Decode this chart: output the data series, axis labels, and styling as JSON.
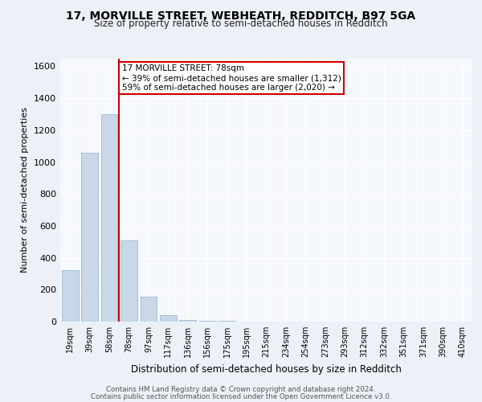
{
  "title1": "17, MORVILLE STREET, WEBHEATH, REDDITCH, B97 5GA",
  "title2": "Size of property relative to semi-detached houses in Redditch",
  "xlabel": "Distribution of semi-detached houses by size in Redditch",
  "ylabel": "Number of semi-detached properties",
  "bin_labels": [
    "19sqm",
    "39sqm",
    "58sqm",
    "78sqm",
    "97sqm",
    "117sqm",
    "136sqm",
    "156sqm",
    "175sqm",
    "195sqm",
    "215sqm",
    "234sqm",
    "254sqm",
    "273sqm",
    "293sqm",
    "312sqm",
    "332sqm",
    "351sqm",
    "371sqm",
    "390sqm",
    "410sqm"
  ],
  "bar_heights": [
    320,
    1060,
    1300,
    510,
    155,
    40,
    10,
    5,
    3,
    2,
    1,
    1,
    0,
    0,
    0,
    0,
    0,
    0,
    0,
    0,
    0
  ],
  "bar_color": "#c8d8e8",
  "bar_edgecolor": "#a0b8d0",
  "property_line_bin": 3,
  "property_sqm": 78,
  "property_label": "17 MORVILLE STREET: 78sqm",
  "pct_smaller": 39,
  "pct_larger": 59,
  "n_smaller": 1312,
  "n_larger": 2020,
  "annotation_box_color": "#cc0000",
  "ylim": [
    0,
    1650
  ],
  "yticks": [
    0,
    200,
    400,
    600,
    800,
    1000,
    1200,
    1400,
    1600
  ],
  "footer1": "Contains HM Land Registry data © Crown copyright and database right 2024.",
  "footer2": "Contains public sector information licensed under the Open Government Licence v3.0.",
  "bg_color": "#ecf1f7",
  "plot_bg_color": "#f5f8fc"
}
